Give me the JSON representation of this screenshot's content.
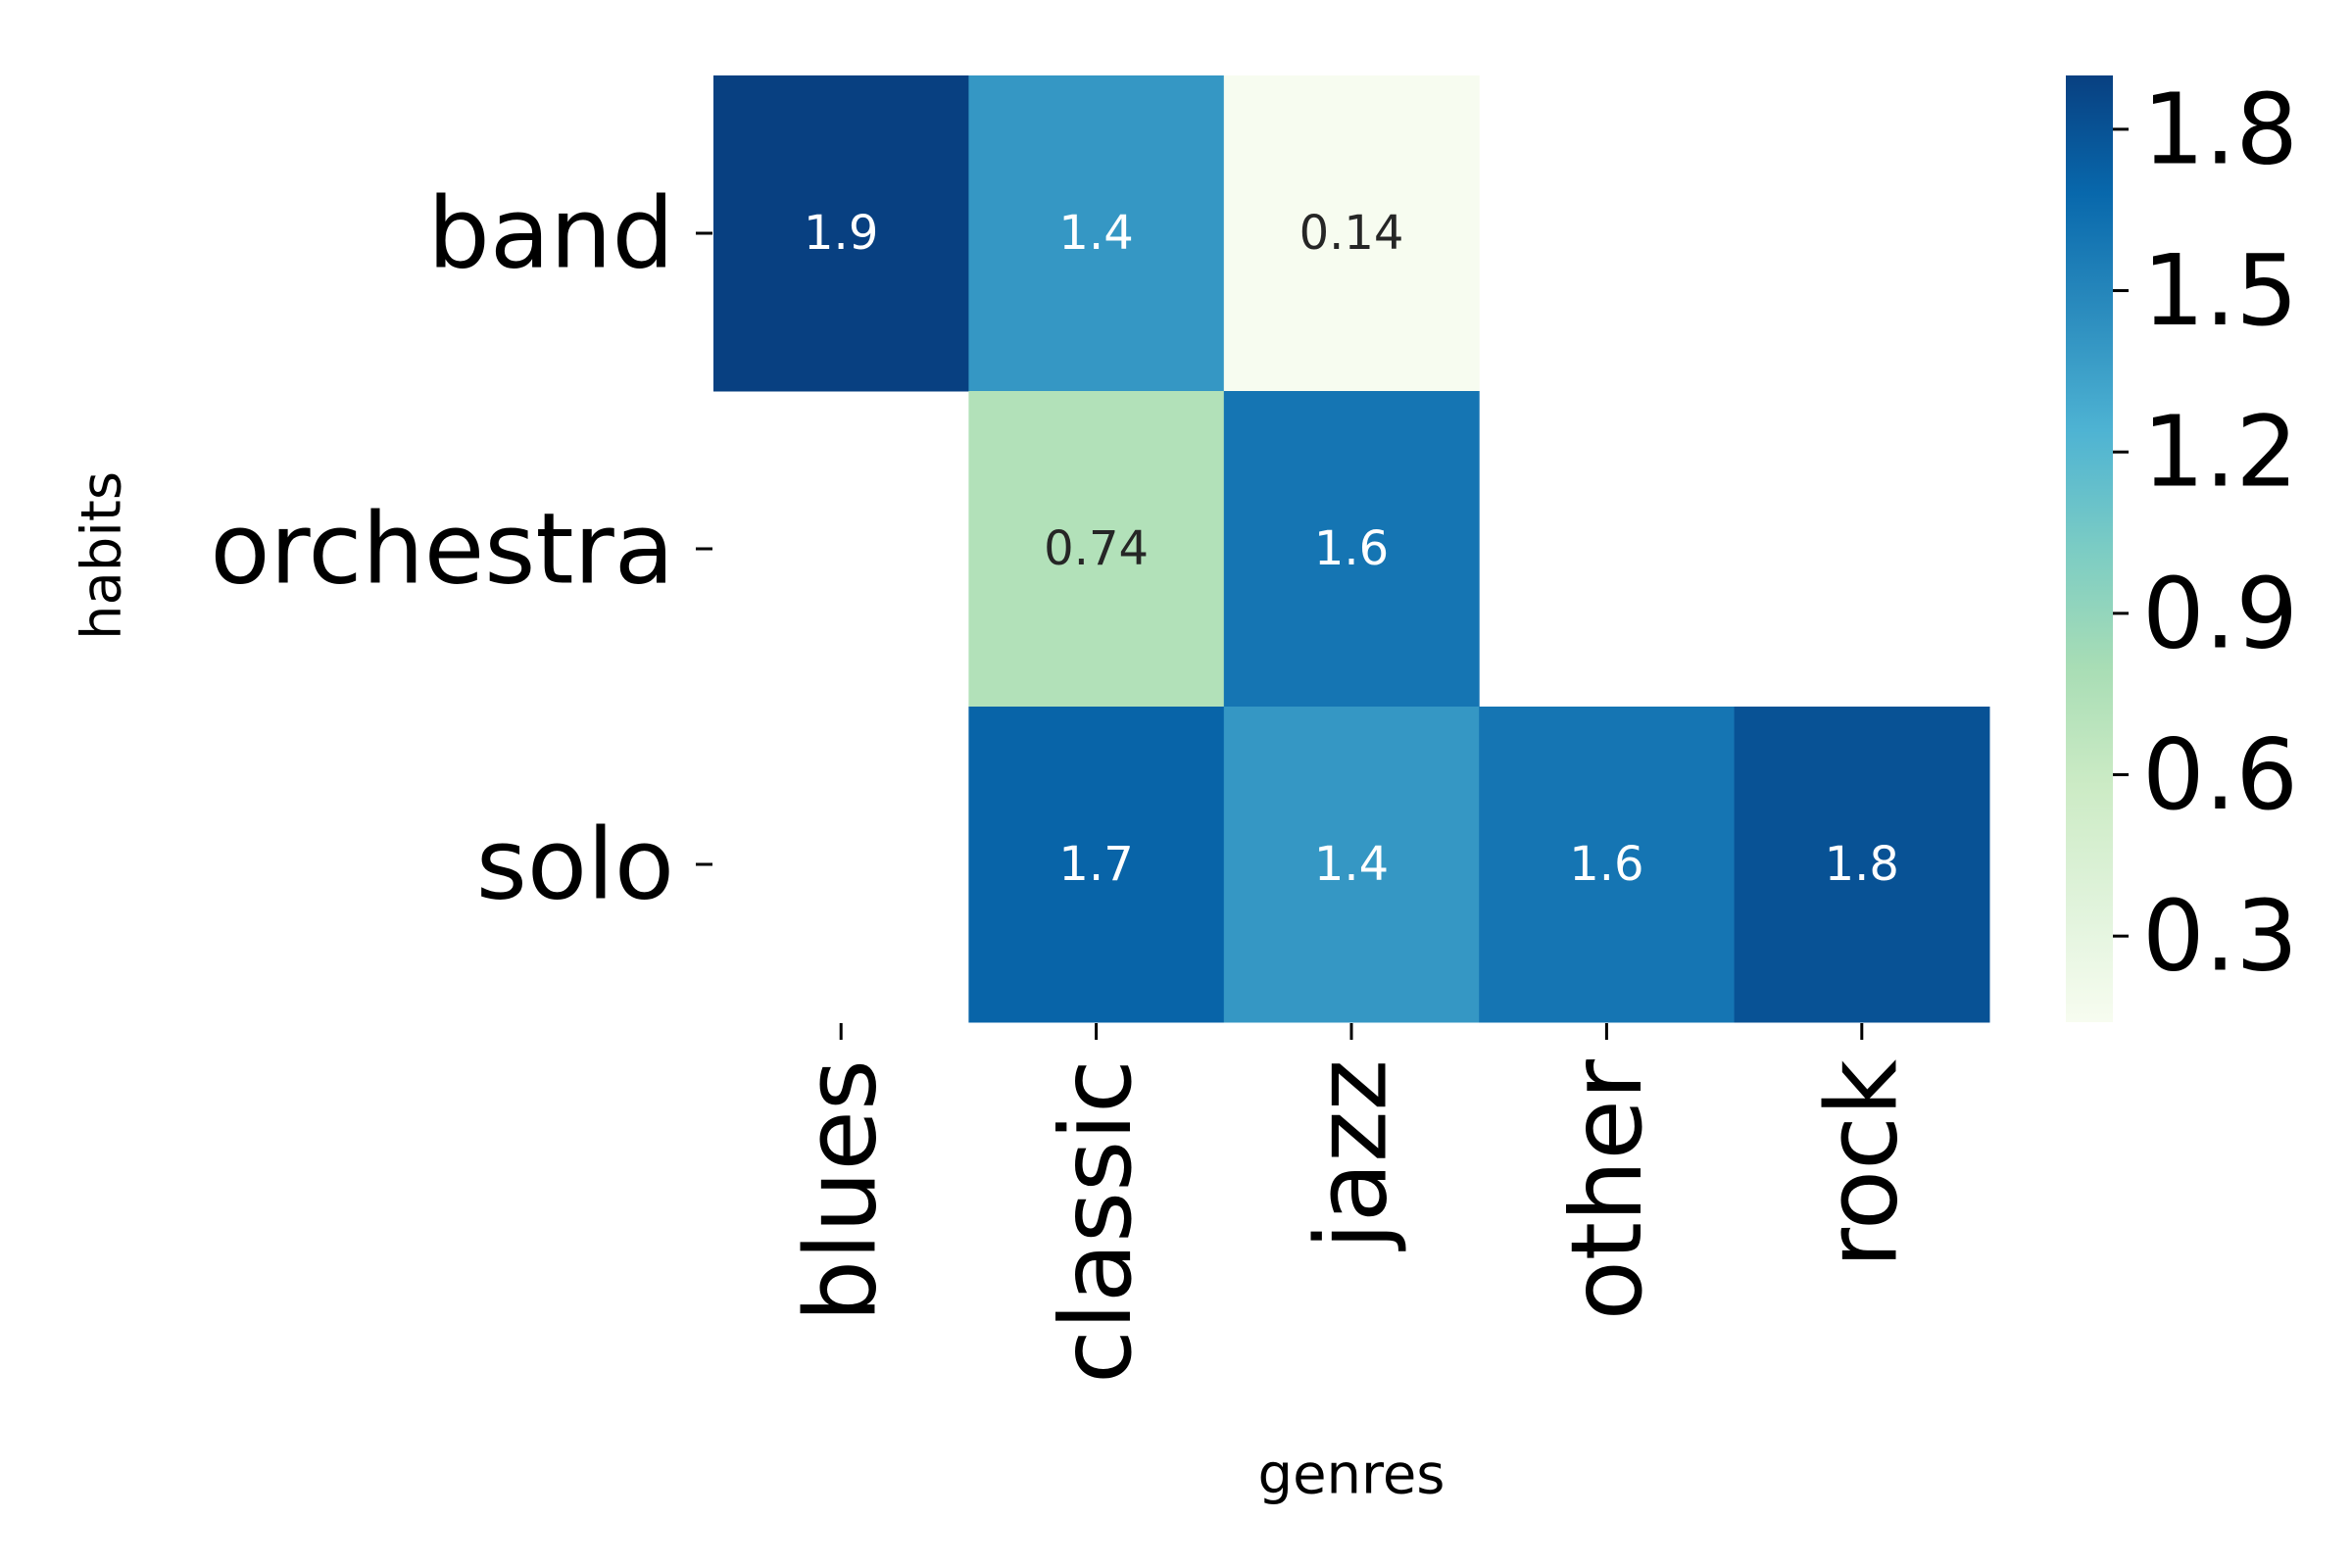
{
  "chart_data": {
    "type": "heatmap",
    "title": "",
    "xlabel": "genres",
    "ylabel": "habits",
    "x_categories": [
      "blues",
      "classic",
      "jazz",
      "other",
      "rock"
    ],
    "y_categories": [
      "band",
      "orchestra",
      "solo"
    ],
    "values": [
      [
        1.9,
        1.4,
        0.14,
        null,
        null
      ],
      [
        null,
        0.74,
        1.6,
        null,
        null
      ],
      [
        null,
        1.7,
        1.4,
        1.6,
        1.8
      ]
    ],
    "annotations": [
      [
        "1.9",
        "1.4",
        "0.14",
        "",
        ""
      ],
      [
        "",
        "0.74",
        "1.6",
        "",
        ""
      ],
      [
        "",
        "1.7",
        "1.4",
        "1.6",
        "1.8"
      ]
    ],
    "colormap": "GnBu",
    "colormap_stops": [
      "#f7fcf0",
      "#e0f3db",
      "#ccebc5",
      "#a8ddb5",
      "#7bccc4",
      "#4eb3d3",
      "#2b8cbe",
      "#0868ac",
      "#084081"
    ],
    "color_range": [
      0.14,
      1.9
    ],
    "colorbar": {
      "ticks": [
        0.3,
        0.6,
        0.9,
        1.2,
        1.5,
        1.8
      ],
      "tick_labels": [
        "0.3",
        "0.6",
        "0.9",
        "1.2",
        "1.5",
        "1.8"
      ]
    },
    "missing_cells": "blank",
    "grid": false,
    "legend": "colorbar-right"
  }
}
